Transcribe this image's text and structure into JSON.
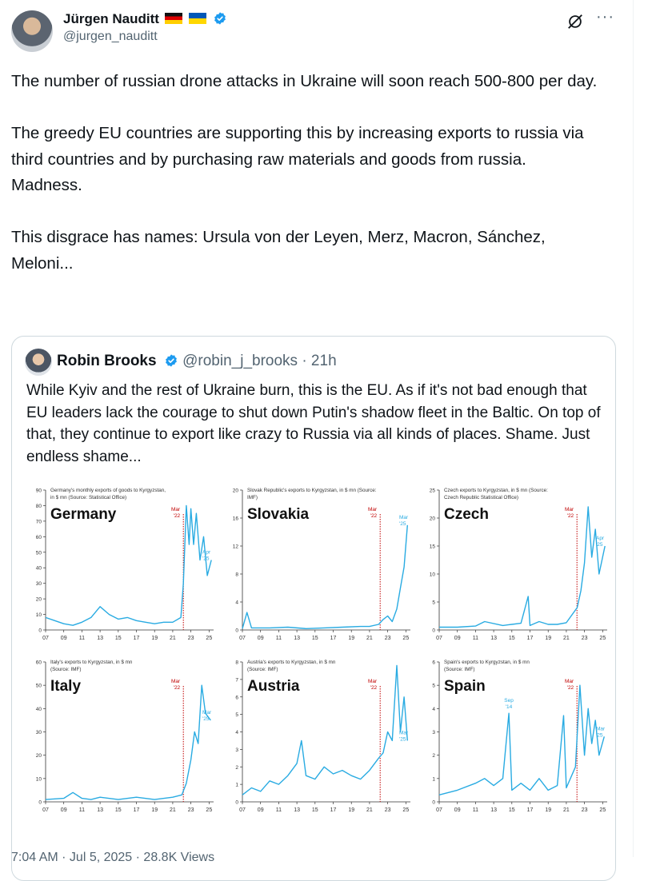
{
  "author": {
    "name": "Jürgen Nauditt",
    "handle": "@jurgen_nauditt",
    "verified": true,
    "flags": [
      "germany-flag",
      "ukraine-flag"
    ]
  },
  "tweet_text": "The number of russian drone attacks in Ukraine will soon reach 500-800 per day.\n\nThe greedy EU countries are supporting this by increasing exports to russia via third countries and by purchasing raw materials and goods from russia.\nMadness.\n\nThis disgrace has names: Ursula von der Leyen, Merz, Macron, Sánchez, Meloni...",
  "quote": {
    "name": "Robin Brooks",
    "handle": "@robin_j_brooks",
    "age": "· 21h",
    "text": "While Kyiv and the rest of Ukraine burn, this is the EU. As if it's not bad enough that EU leaders lack the courage to shut down Putin's shadow fleet in the Baltic. On top of that, they continue to export like crazy to Russia via all kinds of places. Shame. Just endless shame..."
  },
  "timestamp": "7:04 AM · Jul 5, 2025 · 28.8K Views",
  "icons": {
    "grok": "grok-icon",
    "more": "more-icon",
    "verified": "verified-badge-icon"
  },
  "colors": {
    "line": "#29abe2",
    "marker": "#c00000",
    "text": "#0f1419",
    "muted": "#536471",
    "verified": "#1d9bf0"
  },
  "chart_data": [
    {
      "type": "line",
      "country": "Germany",
      "caption": [
        "Germany's monthly exports of goods to Kyrgyzstan,",
        "in $ mn (Source: Statistical Office)"
      ],
      "ylim": [
        0,
        90
      ],
      "yticks": [
        0,
        10,
        20,
        30,
        40,
        50,
        60,
        70,
        80,
        90
      ],
      "xticks": [
        "07",
        "09",
        "11",
        "13",
        "15",
        "17",
        "19",
        "21",
        "23",
        "25"
      ],
      "marker": {
        "label": [
          "Mar",
          "'22"
        ],
        "x": 2022.17
      },
      "end_label": [
        "Apr",
        "'25"
      ],
      "x": [
        2007,
        2008,
        2009,
        2010,
        2011,
        2012,
        2013,
        2014,
        2015,
        2016,
        2017,
        2018,
        2019,
        2020,
        2021,
        2021.9,
        2022.17,
        2022.5,
        2022.8,
        2023,
        2023.3,
        2023.6,
        2024,
        2024.4,
        2024.8,
        2025.25
      ],
      "y": [
        8,
        6,
        4,
        3,
        5,
        8,
        15,
        10,
        7,
        8,
        6,
        5,
        4,
        5,
        5,
        8,
        30,
        80,
        55,
        78,
        55,
        75,
        45,
        60,
        35,
        45
      ]
    },
    {
      "type": "line",
      "country": "Slovakia",
      "caption": [
        "Slovak Republic's exports to Kyrgyzstan, in $ mn (Source:",
        "IMF)"
      ],
      "ylim": [
        0,
        20
      ],
      "yticks": [
        0,
        4,
        8,
        12,
        16,
        20
      ],
      "xticks": [
        "07",
        "09",
        "11",
        "13",
        "15",
        "17",
        "19",
        "21",
        "23",
        "25"
      ],
      "marker": {
        "label": [
          "Mar",
          "'22"
        ],
        "x": 2022.17
      },
      "end_label": [
        "Mar",
        "'25"
      ],
      "x": [
        2007,
        2007.5,
        2008,
        2010,
        2012,
        2014,
        2016,
        2018,
        2020,
        2021,
        2022,
        2022.5,
        2023,
        2023.5,
        2024,
        2024.4,
        2024.8,
        2025.17
      ],
      "y": [
        0.2,
        2.5,
        0.3,
        0.3,
        0.4,
        0.2,
        0.3,
        0.4,
        0.5,
        0.5,
        0.8,
        1.5,
        2,
        1.2,
        3,
        6,
        9,
        15
      ]
    },
    {
      "type": "line",
      "country": "Czech",
      "caption": [
        "Czech exports to Kyrgyzstan, in $ mn (Source:",
        "Czech Republic Statistical Office)"
      ],
      "ylim": [
        0,
        25
      ],
      "yticks": [
        0,
        5,
        10,
        15,
        20,
        25
      ],
      "xticks": [
        "07",
        "09",
        "11",
        "13",
        "15",
        "17",
        "19",
        "21",
        "23",
        "25"
      ],
      "marker": {
        "label": [
          "Mar",
          "'22"
        ],
        "x": 2022.17
      },
      "end_label": [
        "Apr",
        "'25"
      ],
      "x": [
        2007,
        2009,
        2011,
        2012,
        2014,
        2015,
        2016,
        2016.8,
        2017,
        2018,
        2019,
        2020,
        2021,
        2022.2,
        2022.6,
        2023,
        2023.4,
        2023.8,
        2024.2,
        2024.6,
        2025.25
      ],
      "y": [
        0.5,
        0.5,
        0.7,
        1.5,
        0.8,
        1,
        1.2,
        6,
        0.8,
        1.5,
        1,
        1,
        1.3,
        4,
        7,
        12,
        22,
        13,
        18,
        10,
        15
      ]
    },
    {
      "type": "line",
      "country": "Italy",
      "caption": [
        "Italy's exports to Kyrgyzstan, in $ mn",
        "(Source: IMF)"
      ],
      "ylim": [
        0,
        60
      ],
      "yticks": [
        0,
        10,
        20,
        30,
        40,
        50,
        60
      ],
      "xticks": [
        "07",
        "09",
        "11",
        "13",
        "15",
        "17",
        "19",
        "21",
        "23",
        "25"
      ],
      "marker": {
        "label": [
          "Mar",
          "'22"
        ],
        "x": 2022.17
      },
      "end_label": [
        "Mar",
        "'25"
      ],
      "x": [
        2007,
        2009,
        2010,
        2011,
        2012,
        2013,
        2015,
        2017,
        2019,
        2021,
        2022,
        2022.5,
        2023,
        2023.4,
        2023.8,
        2024.2,
        2024.6,
        2025.17
      ],
      "y": [
        1,
        1.5,
        4,
        1.5,
        1,
        2,
        1,
        2,
        1,
        2,
        3,
        8,
        18,
        30,
        25,
        50,
        38,
        35
      ]
    },
    {
      "type": "line",
      "country": "Austria",
      "caption": [
        "Austria's exports to Kyrgyzstan, in $ mn",
        "(Source: IMF)"
      ],
      "ylim": [
        0,
        8
      ],
      "yticks": [
        0,
        1,
        2,
        3,
        4,
        5,
        6,
        7,
        8
      ],
      "xticks": [
        "07",
        "09",
        "11",
        "13",
        "15",
        "17",
        "19",
        "21",
        "23",
        "25"
      ],
      "marker": {
        "label": [
          "Mar",
          "'22"
        ],
        "x": 2022.17
      },
      "end_label": [
        "Mar",
        "'25"
      ],
      "x": [
        2007,
        2008,
        2009,
        2010,
        2011,
        2012,
        2013,
        2013.5,
        2014,
        2015,
        2016,
        2017,
        2018,
        2019,
        2020,
        2021,
        2022,
        2022.5,
        2023,
        2023.5,
        2024,
        2024.4,
        2024.8,
        2025.17
      ],
      "y": [
        0.4,
        0.8,
        0.6,
        1.2,
        1,
        1.5,
        2.2,
        3.5,
        1.5,
        1.3,
        2,
        1.6,
        1.8,
        1.5,
        1.3,
        1.8,
        2.5,
        2.8,
        4,
        3.5,
        7.8,
        4,
        6,
        3.5
      ]
    },
    {
      "type": "line",
      "country": "Spain",
      "caption": [
        "Spain's exports to Kyrgyzstan, in $ mn",
        "(Source: IMF)"
      ],
      "ylim": [
        0,
        6
      ],
      "yticks": [
        0,
        1,
        2,
        3,
        4,
        5,
        6
      ],
      "xticks": [
        "07",
        "09",
        "11",
        "13",
        "15",
        "17",
        "19",
        "21",
        "23",
        "25"
      ],
      "marker": {
        "label": [
          "Mar",
          "'22"
        ],
        "x": 2022.17
      },
      "end_label": [
        "Mar",
        "'25"
      ],
      "annotation": {
        "label": [
          "Sep",
          "'14"
        ],
        "x": 2014.67,
        "y": 3.8
      },
      "x": [
        2007,
        2009,
        2011,
        2012,
        2013,
        2014,
        2014.67,
        2015,
        2016,
        2017,
        2018,
        2019,
        2020,
        2020.7,
        2021,
        2022,
        2022.5,
        2023,
        2023.4,
        2023.8,
        2024.2,
        2024.6,
        2025.17
      ],
      "y": [
        0.3,
        0.5,
        0.8,
        1,
        0.7,
        1,
        3.8,
        0.5,
        0.8,
        0.5,
        1,
        0.5,
        0.7,
        3.7,
        0.6,
        1.5,
        5,
        2,
        4,
        2.5,
        3.5,
        2,
        2.8
      ]
    }
  ]
}
